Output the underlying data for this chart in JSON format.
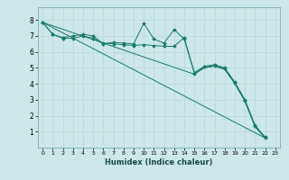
{
  "xlabel": "Humidex (Indice chaleur)",
  "background_color": "#cce8e8",
  "grid_color": "#b8d8d8",
  "line_color": "#1a7a6a",
  "xlim": [
    -0.5,
    23.5
  ],
  "ylim": [
    0,
    8.8
  ],
  "xticks": [
    0,
    1,
    2,
    3,
    4,
    5,
    6,
    7,
    8,
    9,
    10,
    11,
    12,
    13,
    14,
    15,
    16,
    17,
    18,
    19,
    20,
    21,
    22,
    23
  ],
  "yticks": [
    1,
    2,
    3,
    4,
    5,
    6,
    7,
    8
  ],
  "series": [
    {
      "x": [
        0,
        1,
        2,
        3,
        4,
        5,
        6,
        7,
        8,
        9,
        10,
        11,
        12,
        13,
        14,
        15,
        16,
        17,
        18,
        19,
        20,
        21,
        22
      ],
      "y": [
        7.85,
        7.1,
        6.9,
        7.0,
        7.1,
        7.0,
        6.5,
        6.6,
        6.55,
        6.5,
        7.8,
        6.8,
        6.55,
        7.4,
        6.8,
        4.7,
        5.1,
        5.2,
        5.0,
        4.1,
        3.0,
        1.4,
        0.65
      ],
      "marker": "D",
      "markersize": 1.8,
      "lw": 0.7
    },
    {
      "x": [
        0,
        1,
        2,
        3,
        4,
        5,
        6,
        7,
        8,
        9,
        10,
        11,
        12,
        13,
        14,
        15,
        16,
        17,
        18,
        19,
        20,
        21,
        22
      ],
      "y": [
        7.85,
        7.1,
        6.85,
        6.85,
        7.0,
        6.85,
        6.55,
        6.5,
        6.45,
        6.4,
        6.45,
        6.4,
        6.35,
        6.35,
        6.9,
        4.65,
        5.05,
        5.15,
        4.95,
        4.05,
        2.95,
        1.35,
        0.6
      ],
      "marker": "D",
      "markersize": 1.8,
      "lw": 0.7
    },
    {
      "x": [
        0,
        22
      ],
      "y": [
        7.85,
        0.6
      ],
      "marker": null,
      "markersize": 0,
      "lw": 0.7
    },
    {
      "x": [
        0,
        15,
        16,
        17,
        18,
        19,
        20,
        21,
        22
      ],
      "y": [
        7.85,
        4.6,
        5.0,
        5.1,
        4.9,
        4.0,
        2.9,
        1.3,
        0.6
      ],
      "marker": null,
      "markersize": 0,
      "lw": 0.7
    }
  ]
}
